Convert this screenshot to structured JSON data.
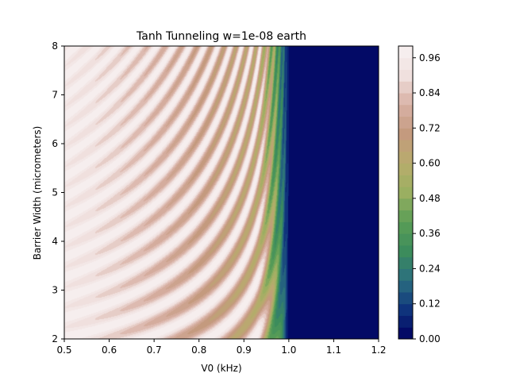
{
  "chart_data": {
    "type": "heatmap",
    "subtype": "filled-contour",
    "title": "Tanh Tunneling w=1e-08 earth",
    "xlabel": "V0 (kHz)",
    "ylabel": "Barrier Width (micrometers)",
    "xlim": [
      0.5,
      1.2
    ],
    "ylim": [
      2,
      8
    ],
    "xticks": [
      "0.5",
      "0.6",
      "0.7",
      "0.8",
      "0.9",
      "1.0",
      "1.1",
      "1.2"
    ],
    "yticks": [
      "2",
      "3",
      "4",
      "5",
      "6",
      "7",
      "8"
    ],
    "colorbar": {
      "ticks": [
        "0.00",
        "0.12",
        "0.24",
        "0.36",
        "0.48",
        "0.60",
        "0.72",
        "0.84",
        "0.96"
      ],
      "range": [
        0.0,
        1.0
      ],
      "levels": 25,
      "colormap": "gist_earth",
      "stops": [
        "#000060",
        "#0f337c",
        "#2a6e80",
        "#3c8c5c",
        "#5a9e56",
        "#9aaf61",
        "#b8ac6c",
        "#c49a7e",
        "#d8b0a5",
        "#f0e0de",
        "#f8f2f2"
      ]
    },
    "model": {
      "description_values": {
        "critical_V0": 1.0,
        "transmission_above_critical": 0.0,
        "transmission_band_minimum": 0.6
      }
    },
    "grid": false,
    "legend": "none"
  }
}
